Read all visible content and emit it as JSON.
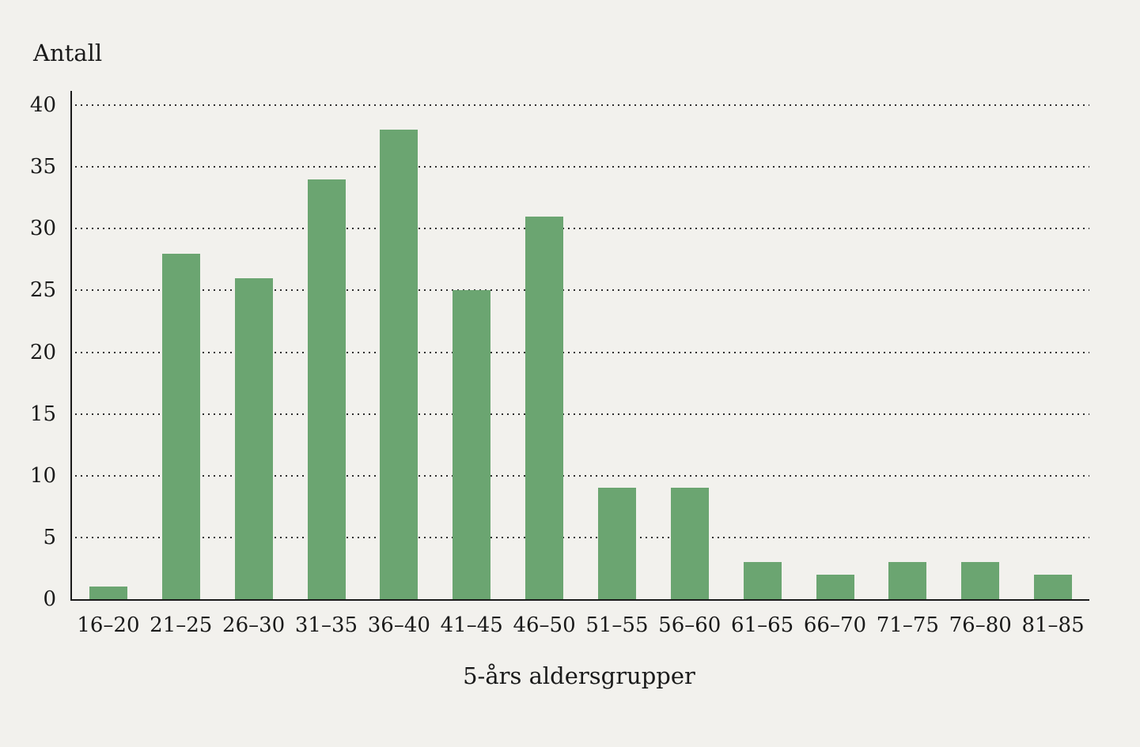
{
  "chart_data": {
    "type": "bar",
    "title": "",
    "xlabel": "5-års aldersgrupper",
    "ylabel": "Antall",
    "categories": [
      "16–20",
      "21–25",
      "26–30",
      "31–35",
      "36–40",
      "41–45",
      "46–50",
      "51–55",
      "56–60",
      "61–65",
      "66–70",
      "71–75",
      "76–80",
      "81–85"
    ],
    "values": [
      1,
      28,
      26,
      34,
      38,
      25,
      31,
      9,
      9,
      3,
      2,
      3,
      3,
      2
    ],
    "ylim": [
      0,
      40
    ],
    "yticks": [
      0,
      5,
      10,
      15,
      20,
      25,
      30,
      35,
      40
    ],
    "grid": "horizontal-dotted",
    "legend_position": "none",
    "colors": {
      "bar": "#6ba571",
      "background": "#f2f1ed",
      "axis": "#1a1a1a",
      "gridline": "#2e2e2e",
      "text": "#1a1a1a"
    }
  }
}
